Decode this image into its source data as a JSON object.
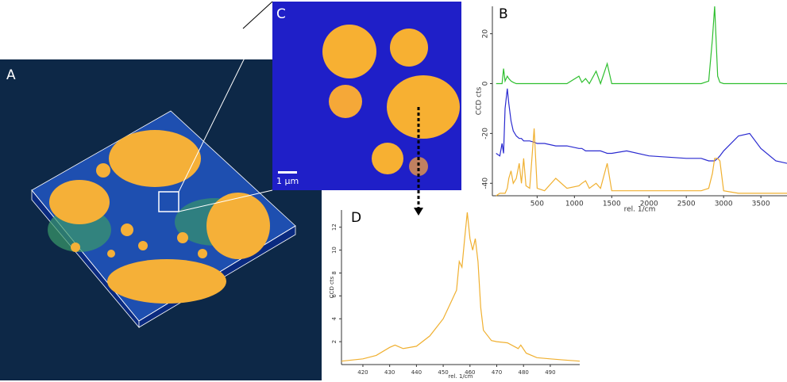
{
  "panels": {
    "a_label": "A",
    "c_label": "C",
    "scale_bar": "1 µm"
  },
  "chart_data": [
    {
      "type": "line",
      "panel_label": "B",
      "y_label": "CCD cts",
      "x_label": "rel. 1/cm",
      "x": [
        -50,
        0,
        30,
        50,
        70,
        100,
        120,
        150,
        180,
        220,
        260,
        290,
        320,
        350,
        400,
        460,
        500,
        600,
        750,
        900,
        1060,
        1100,
        1150,
        1200,
        1290,
        1350,
        1440,
        1500,
        1700,
        2000,
        2500,
        2700,
        2800,
        2850,
        2880,
        2920,
        2950,
        3000,
        3200,
        3350,
        3500,
        3700,
        3850
      ],
      "series": [
        {
          "color": "#2fbf2f",
          "values": [
            0,
            0,
            0,
            6,
            1,
            3,
            2,
            1,
            0.5,
            0,
            0,
            0,
            0,
            0,
            0,
            0,
            0,
            0,
            0,
            0,
            3,
            0.5,
            2,
            0,
            5,
            0,
            8,
            0,
            0,
            0,
            0,
            0,
            1,
            18,
            31,
            3,
            0.5,
            0,
            0,
            0,
            0,
            0,
            0
          ]
        },
        {
          "color": "#2a2ad0",
          "values": [
            -28,
            -29,
            -24,
            -28,
            -10,
            -2,
            -8,
            -15,
            -19,
            -21,
            -22,
            -22,
            -23,
            -23,
            -23,
            -23.5,
            -24,
            -24,
            -25,
            -25,
            -26,
            -26,
            -27,
            -27,
            -27,
            -27,
            -28,
            -28,
            -27,
            -29,
            -30,
            -30,
            -31,
            -31,
            -31,
            -30,
            -29,
            -27,
            -21,
            -20,
            -26,
            -31,
            -32
          ]
        },
        {
          "color": "#f0b030",
          "values": [
            -45,
            -44,
            -44,
            -44,
            -44,
            -42,
            -38,
            -35,
            -40,
            -38,
            -32,
            -40,
            -30,
            -41,
            -42,
            -18,
            -42,
            -43,
            -38,
            -42,
            -41,
            -40,
            -39,
            -42,
            -40,
            -42,
            -32,
            -43,
            -43,
            -43,
            -43,
            -43,
            -42,
            -36,
            -30,
            -30,
            -31,
            -43,
            -44,
            -44,
            -44,
            -44,
            -44
          ]
        }
      ],
      "xlim": [
        -100,
        3850
      ],
      "ylim": [
        -45,
        31
      ],
      "xticks": [
        500,
        1000,
        1500,
        2000,
        2500,
        3000,
        3500
      ],
      "yticks": [
        -40,
        -20,
        0,
        20
      ],
      "grid": false
    },
    {
      "type": "line",
      "panel_label": "D",
      "y_label": "CCD cts",
      "x_label": "rel. 1/cm",
      "x": [
        412,
        420,
        425,
        430,
        432,
        435,
        440,
        445,
        450,
        453,
        455,
        456,
        457,
        458,
        459,
        460,
        461,
        462,
        463,
        464,
        465,
        468,
        470,
        474,
        478,
        479,
        481,
        485,
        490,
        495,
        501
      ],
      "series": [
        {
          "color": "#f0b030",
          "values": [
            0.3,
            0.5,
            0.8,
            1.5,
            1.7,
            1.4,
            1.6,
            2.5,
            4,
            5.5,
            6.5,
            9,
            8.5,
            11,
            13.3,
            11,
            10,
            11,
            9,
            5,
            3,
            2.1,
            2,
            1.9,
            1.4,
            1.7,
            1,
            0.6,
            0.5,
            0.4,
            0.3
          ]
        }
      ],
      "xlim": [
        412,
        501
      ],
      "ylim": [
        0,
        13.5
      ],
      "xticks": [
        420,
        430,
        440,
        450,
        460,
        470,
        480,
        490
      ],
      "yticks": [
        2,
        4,
        6,
        8,
        10,
        12
      ],
      "grid": false
    }
  ]
}
